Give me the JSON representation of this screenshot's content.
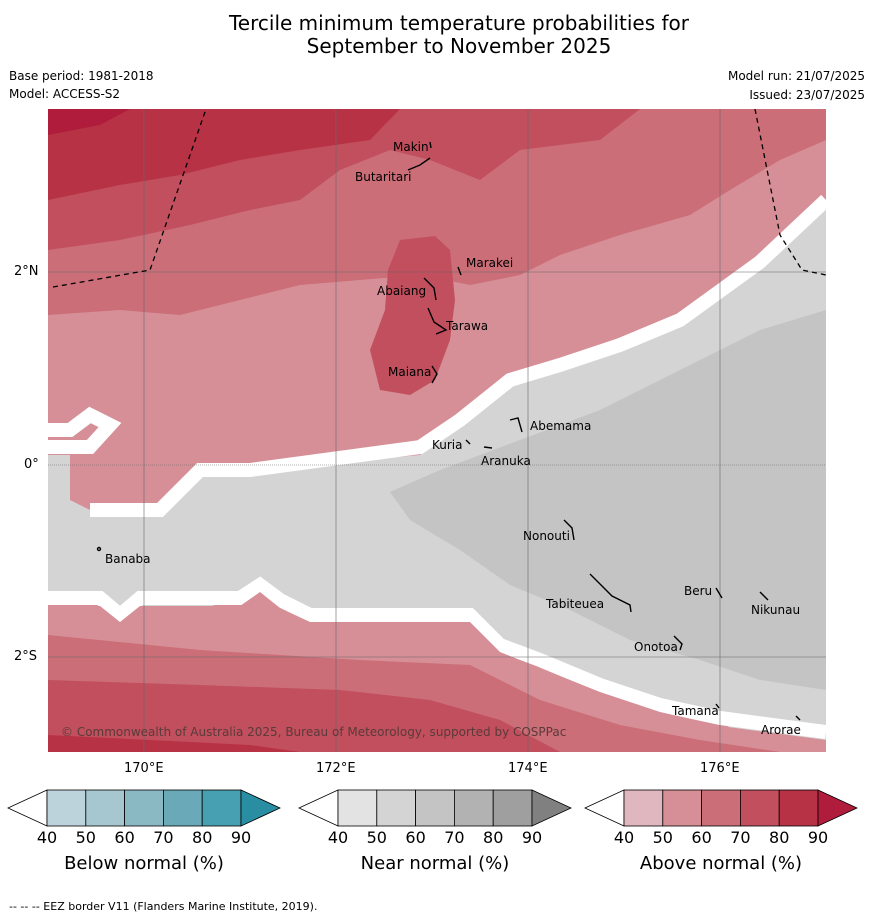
{
  "title_line1": "Tercile minimum temperature probabilities for",
  "title_line2": "September to November 2025",
  "base_period": "Base period: 1981-2018",
  "model": "Model: ACCESS-S2",
  "model_run": "Model run: 21/07/2025",
  "issued": "Issued: 23/07/2025",
  "copyright": "© Commonwealth of Australia 2025, Bureau of Meteorology, supported by COSPPac",
  "footnote": "--  --  -- EEZ border V11 (Flanders Marine Institute, 2019).",
  "lon_labels": [
    "170°E",
    "172°E",
    "174°E",
    "176°E"
  ],
  "lat_labels": [
    "2°N",
    "0°",
    "2°S"
  ],
  "places": [
    "Makin",
    "Butaritari",
    "Marakei",
    "Abaiang",
    "Tarawa",
    "Maiana",
    "Abemama",
    "Kuria",
    "Aranuka",
    "Banaba",
    "Nonouti",
    "Beru",
    "Nikunau",
    "Tabiteuea",
    "Onotoa",
    "Tamana",
    "Arorae"
  ],
  "colorbars": [
    {
      "title": "Below normal (%)",
      "ticks": [
        "40",
        "50",
        "60",
        "70",
        "80",
        "90"
      ],
      "colors": [
        "#ffffff",
        "#bdd3db",
        "#a6c7cf",
        "#8ab8c3",
        "#6aa9b7",
        "#47a0b1",
        "#2a8ea2"
      ]
    },
    {
      "title": "Near normal (%)",
      "ticks": [
        "40",
        "50",
        "60",
        "70",
        "80",
        "90"
      ],
      "colors": [
        "#ffffff",
        "#e3e3e3",
        "#d4d4d4",
        "#c4c4c4",
        "#b2b2b2",
        "#9f9f9f",
        "#808080"
      ]
    },
    {
      "title": "Above normal (%)",
      "ticks": [
        "40",
        "50",
        "60",
        "70",
        "80",
        "90"
      ],
      "colors": [
        "#ffffff",
        "#e0b7be",
        "#d68f97",
        "#cb6e78",
        "#c24f5d",
        "#b83246",
        "#b01c3c"
      ]
    }
  ]
}
